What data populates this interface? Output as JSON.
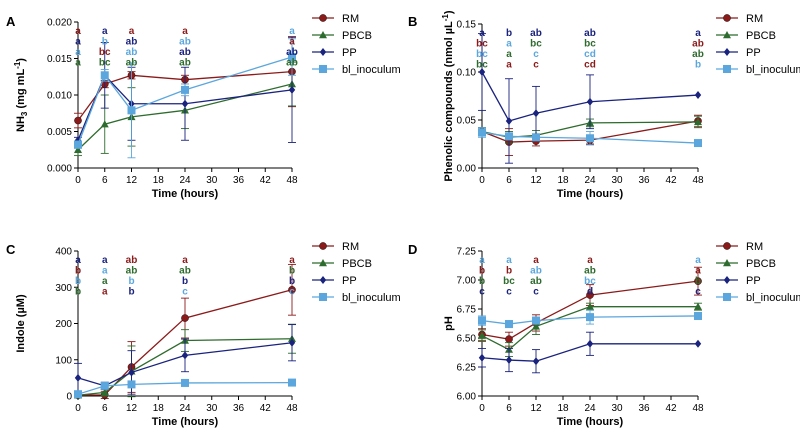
{
  "colors": {
    "RM": "#8b1a1a",
    "PBCB": "#2e6b2e",
    "PP": "#1a237e",
    "bl_inoculum": "#5ba7dd"
  },
  "chart_data": [
    {
      "panel": "A",
      "type": "line",
      "xlabel": "Time (hours)",
      "ylabel_main": "NH",
      "ylabel_sub": "3",
      "ylabel_tail": " (mg mL",
      "ylabel_sup": "-1",
      "ylabel_end": ")",
      "x": [
        0,
        6,
        12,
        24,
        48
      ],
      "xticks": [
        0,
        6,
        12,
        18,
        24,
        30,
        36,
        42,
        48
      ],
      "ylim": [
        0,
        0.02
      ],
      "yticks": [
        0.0,
        0.005,
        0.01,
        0.015,
        0.02
      ],
      "ytick_labels": [
        "0.000",
        "0.005",
        "0.010",
        "0.015",
        "0.020"
      ],
      "series": [
        {
          "name": "RM",
          "marker": "circle",
          "values": [
            0.0065,
            0.0115,
            0.0127,
            0.0121,
            0.0132
          ],
          "err": [
            0.001,
            0.0005,
            0.0005,
            0.0006,
            0.0048
          ]
        },
        {
          "name": "PBCB",
          "marker": "triangle",
          "values": [
            0.0025,
            0.006,
            0.007,
            0.0079,
            0.0115
          ],
          "err": [
            0.0008,
            0.004,
            0.004,
            0.0025,
            0.003
          ]
        },
        {
          "name": "PP",
          "marker": "diamond",
          "values": [
            0.0038,
            0.0127,
            0.0088,
            0.0088,
            0.0107
          ],
          "err": [
            0.0004,
            0.0045,
            0.005,
            0.005,
            0.0072
          ]
        },
        {
          "name": "bl_inoculum",
          "marker": "square",
          "values": [
            0.0032,
            0.0127,
            0.0079,
            0.0107,
            0.0152
          ],
          "err": [
            0.0005,
            0.0008,
            0.0065,
            0.0008,
            0.0025
          ]
        }
      ],
      "annotations": [
        {
          "x": 0,
          "labels": [
            [
              "a",
              "RM"
            ],
            [
              "a",
              "PP"
            ],
            [
              "a",
              "bl_inoculum"
            ],
            [
              "a",
              "PBCB"
            ]
          ]
        },
        {
          "x": 6,
          "labels": [
            [
              "a",
              "PP"
            ],
            [
              "b",
              "bl_inoculum"
            ],
            [
              "bc",
              "RM"
            ],
            [
              "bc",
              "PBCB"
            ]
          ]
        },
        {
          "x": 12,
          "labels": [
            [
              "a",
              "RM"
            ],
            [
              "ab",
              "PP"
            ],
            [
              "ab",
              "bl_inoculum"
            ],
            [
              "ab",
              "PBCB"
            ]
          ]
        },
        {
          "x": 24,
          "labels": [
            [
              "a",
              "RM"
            ],
            [
              "ab",
              "bl_inoculum"
            ],
            [
              "ab",
              "PP"
            ],
            [
              "ab",
              "PBCB"
            ]
          ]
        },
        {
          "x": 48,
          "labels": [
            [
              "a",
              "bl_inoculum"
            ],
            [
              "a",
              "RM"
            ],
            [
              "ab",
              "PP"
            ],
            [
              "ab",
              "PBCB"
            ]
          ]
        }
      ]
    },
    {
      "panel": "B",
      "type": "line",
      "xlabel": "Time (hours)",
      "ylabel_main": "Phenolic compounds (nmol µL",
      "ylabel_sub": "",
      "ylabel_tail": "",
      "ylabel_sup": "-1",
      "ylabel_end": ")",
      "x": [
        0,
        6,
        12,
        24,
        48
      ],
      "xticks": [
        0,
        6,
        12,
        18,
        24,
        30,
        36,
        42,
        48
      ],
      "ylim": [
        0,
        0.15
      ],
      "yticks": [
        0.0,
        0.05,
        0.1,
        0.15
      ],
      "ytick_labels": [
        "0.00",
        "0.05",
        "0.10",
        "0.15"
      ],
      "series": [
        {
          "name": "RM",
          "marker": "circle",
          "values": [
            0.038,
            0.027,
            0.028,
            0.029,
            0.049
          ],
          "err": [
            0.004,
            0.014,
            0.005,
            0.004,
            0.006
          ]
        },
        {
          "name": "PBCB",
          "marker": "triangle",
          "values": [
            0.038,
            0.032,
            0.034,
            0.047,
            0.048
          ],
          "err": [
            0.004,
            0.006,
            0.005,
            0.004,
            0.006
          ]
        },
        {
          "name": "PP",
          "marker": "diamond",
          "values": [
            0.1,
            0.049,
            0.057,
            0.069,
            0.076
          ],
          "err": [
            0.04,
            0.044,
            0.028,
            0.028,
            0.0
          ]
        },
        {
          "name": "bl_inoculum",
          "marker": "square",
          "values": [
            0.037,
            0.033,
            0.032,
            0.031,
            0.026
          ],
          "err": [
            0.005,
            0.003,
            0.003,
            0.007,
            0.003
          ]
        }
      ],
      "annotations": [
        {
          "x": 0,
          "labels": [
            [
              "a",
              "PP"
            ],
            [
              "bc",
              "RM"
            ],
            [
              "bc",
              "bl_inoculum"
            ],
            [
              "bc",
              "PBCB"
            ]
          ]
        },
        {
          "x": 6,
          "labels": [
            [
              "b",
              "PP"
            ],
            [
              "a",
              "bl_inoculum"
            ],
            [
              "a",
              "PBCB"
            ],
            [
              "a",
              "RM"
            ]
          ]
        },
        {
          "x": 12,
          "labels": [
            [
              "ab",
              "PP"
            ],
            [
              "bc",
              "PBCB"
            ],
            [
              "c",
              "bl_inoculum"
            ],
            [
              "c",
              "RM"
            ]
          ]
        },
        {
          "x": 24,
          "labels": [
            [
              "ab",
              "PP"
            ],
            [
              "bc",
              "PBCB"
            ],
            [
              "cd",
              "bl_inoculum"
            ],
            [
              "cd",
              "RM"
            ]
          ]
        },
        {
          "x": 48,
          "labels": [
            [
              "a",
              "PP"
            ],
            [
              "ab",
              "RM"
            ],
            [
              "ab",
              "PBCB"
            ],
            [
              "b",
              "bl_inoculum"
            ]
          ]
        }
      ]
    },
    {
      "panel": "C",
      "type": "line",
      "xlabel": "Time (hours)",
      "ylabel_main": "Indole (µM)",
      "ylabel_sub": "",
      "ylabel_tail": "",
      "ylabel_sup": "",
      "ylabel_end": "",
      "x": [
        0,
        6,
        12,
        24,
        48
      ],
      "xticks": [
        0,
        6,
        12,
        18,
        24,
        30,
        36,
        42,
        48
      ],
      "ylim": [
        0,
        400
      ],
      "yticks": [
        0,
        100,
        200,
        300,
        400
      ],
      "ytick_labels": [
        "0",
        "100",
        "200",
        "300",
        "400"
      ],
      "series": [
        {
          "name": "RM",
          "marker": "circle",
          "values": [
            2,
            3,
            80,
            215,
            293
          ],
          "err": [
            5,
            10,
            70,
            55,
            70
          ]
        },
        {
          "name": "PBCB",
          "marker": "triangle",
          "values": [
            2,
            10,
            68,
            153,
            158
          ],
          "err": [
            5,
            10,
            70,
            30,
            40
          ]
        },
        {
          "name": "PP",
          "marker": "diamond",
          "values": [
            50,
            28,
            65,
            112,
            147
          ],
          "err": [
            40,
            10,
            60,
            45,
            50
          ]
        },
        {
          "name": "bl_inoculum",
          "marker": "square",
          "values": [
            5,
            28,
            32,
            36,
            37
          ],
          "err": [
            4,
            6,
            6,
            3,
            3
          ]
        }
      ],
      "annotations": [
        {
          "x": 0,
          "labels": [
            [
              "a",
              "PP"
            ],
            [
              "b",
              "RM"
            ],
            [
              "b",
              "bl_inoculum"
            ],
            [
              "b",
              "PBCB"
            ]
          ]
        },
        {
          "x": 6,
          "labels": [
            [
              "a",
              "PP"
            ],
            [
              "a",
              "bl_inoculum"
            ],
            [
              "a",
              "PBCB"
            ],
            [
              "a",
              "RM"
            ]
          ]
        },
        {
          "x": 12,
          "labels": [
            [
              "ab",
              "RM"
            ],
            [
              "ab",
              "PBCB"
            ],
            [
              "b",
              "bl_inoculum"
            ],
            [
              "b",
              "PP"
            ]
          ]
        },
        {
          "x": 24,
          "labels": [
            [
              "a",
              "RM"
            ],
            [
              "ab",
              "PBCB"
            ],
            [
              "b",
              "PP"
            ],
            [
              "c",
              "bl_inoculum"
            ]
          ]
        },
        {
          "x": 48,
          "labels": [
            [
              "a",
              "RM"
            ],
            [
              "b",
              "PBCB"
            ],
            [
              "b",
              "PP"
            ],
            [
              "c",
              "bl_inoculum"
            ]
          ]
        }
      ]
    },
    {
      "panel": "D",
      "type": "line",
      "xlabel": "Time (hours)",
      "ylabel_main": "pH",
      "ylabel_sub": "",
      "ylabel_tail": "",
      "ylabel_sup": "",
      "ylabel_end": "",
      "x": [
        0,
        6,
        12,
        24,
        48
      ],
      "xticks": [
        0,
        6,
        12,
        18,
        24,
        30,
        36,
        42,
        48
      ],
      "ylim": [
        6.0,
        7.25
      ],
      "yticks": [
        6.0,
        6.25,
        6.5,
        6.75,
        7.0,
        7.25
      ],
      "ytick_labels": [
        "6.00",
        "6.25",
        "6.50",
        "6.75",
        "7.00",
        "7.25"
      ],
      "series": [
        {
          "name": "RM",
          "marker": "circle",
          "values": [
            6.53,
            6.49,
            6.63,
            6.87,
            6.99
          ],
          "err": [
            0.05,
            0.06,
            0.07,
            0.09,
            0.12
          ]
        },
        {
          "name": "PBCB",
          "marker": "triangle",
          "values": [
            6.52,
            6.4,
            6.6,
            6.77,
            6.77
          ],
          "err": [
            0.05,
            0.06,
            0.07,
            0.03,
            0.03
          ]
        },
        {
          "name": "PP",
          "marker": "diamond",
          "values": [
            6.33,
            6.31,
            6.3,
            6.45,
            6.45
          ],
          "err": [
            0.08,
            0.1,
            0.1,
            0.1,
            0.0
          ]
        },
        {
          "name": "bl_inoculum",
          "marker": "square",
          "values": [
            6.65,
            6.62,
            6.65,
            6.68,
            6.69
          ],
          "err": [
            0.04,
            0.03,
            0.03,
            0.06,
            0.03
          ]
        }
      ],
      "annotations": [
        {
          "x": 0,
          "labels": [
            [
              "a",
              "bl_inoculum"
            ],
            [
              "b",
              "RM"
            ],
            [
              "b",
              "PBCB"
            ],
            [
              "c",
              "PP"
            ]
          ]
        },
        {
          "x": 6,
          "labels": [
            [
              "a",
              "bl_inoculum"
            ],
            [
              "b",
              "RM"
            ],
            [
              "bc",
              "PBCB"
            ],
            [
              "c",
              "PP"
            ]
          ]
        },
        {
          "x": 12,
          "labels": [
            [
              "a",
              "RM"
            ],
            [
              "ab",
              "bl_inoculum"
            ],
            [
              "ab",
              "PBCB"
            ],
            [
              "c",
              "PP"
            ]
          ]
        },
        {
          "x": 24,
          "labels": [
            [
              "a",
              "RM"
            ],
            [
              "ab",
              "PBCB"
            ],
            [
              "bc",
              "bl_inoculum"
            ],
            [
              "d",
              "PP"
            ]
          ]
        },
        {
          "x": 48,
          "labels": [
            [
              "a",
              "bl_inoculum"
            ],
            [
              "a",
              "RM"
            ],
            [
              "b",
              "PBCB"
            ],
            [
              "c",
              "PP"
            ]
          ]
        }
      ]
    }
  ],
  "legend": [
    {
      "name": "RM",
      "label": "RM",
      "marker": "circle"
    },
    {
      "name": "PBCB",
      "label": "PBCB",
      "marker": "triangle"
    },
    {
      "name": "PP",
      "label": "PP",
      "marker": "diamond"
    },
    {
      "name": "bl_inoculum",
      "label": "bl_inoculum",
      "marker": "square"
    }
  ]
}
